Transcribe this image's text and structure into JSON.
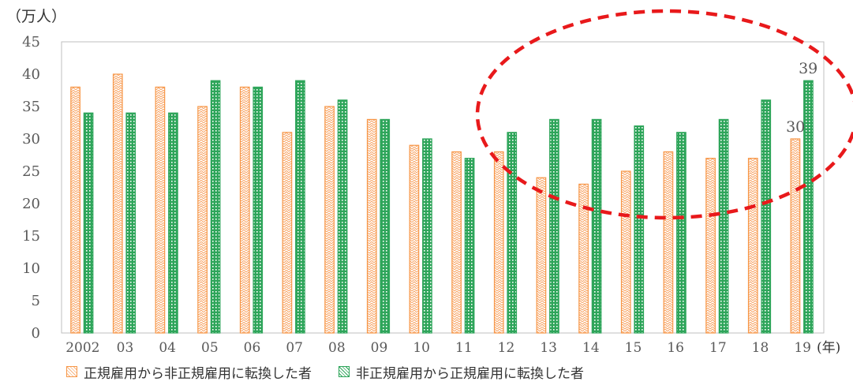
{
  "chart_data": {
    "type": "bar",
    "title": "",
    "ylabel": "（万人）",
    "xlabel": "(年)",
    "ylim": [
      0,
      45
    ],
    "yticks": [
      0,
      5,
      10,
      15,
      20,
      25,
      30,
      35,
      40,
      45
    ],
    "grid": false,
    "legend_position": "bottom",
    "categories": [
      "2002",
      "03",
      "04",
      "05",
      "06",
      "07",
      "08",
      "09",
      "10",
      "11",
      "12",
      "13",
      "14",
      "15",
      "16",
      "17",
      "18",
      "19"
    ],
    "series": [
      {
        "name": "正規雇用から非正規雇用に転換した者",
        "color": "#f79646",
        "values": [
          38,
          40,
          38,
          35,
          38,
          31,
          35,
          33,
          29,
          28,
          28,
          24,
          23,
          25,
          28,
          27,
          27,
          30
        ]
      },
      {
        "name": "非正規雇用から正規雇用に転換した者",
        "color": "#2ea55a",
        "values": [
          34,
          34,
          34,
          39,
          38,
          39,
          36,
          33,
          30,
          27,
          31,
          33,
          33,
          32,
          31,
          33,
          36,
          39
        ]
      }
    ],
    "data_labels": [
      {
        "category": "19",
        "series": 0,
        "text": "30"
      },
      {
        "category": "19",
        "series": 1,
        "text": "39"
      }
    ],
    "annotation": {
      "shape": "dashed-ellipse",
      "color": "#e8191b",
      "highlights": [
        "13",
        "14",
        "15",
        "16",
        "17",
        "18",
        "19"
      ]
    }
  }
}
